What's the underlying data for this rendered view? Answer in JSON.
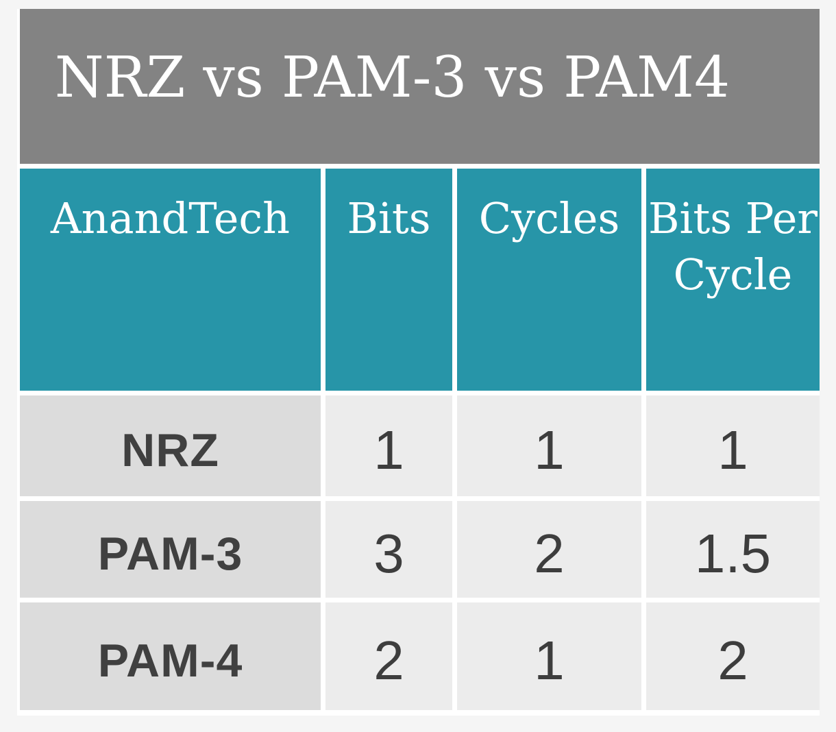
{
  "page": {
    "background": "#f5f5f5",
    "gutter_color": "#ffffff"
  },
  "table": {
    "title": "NRZ vs PAM-3 vs PAM4",
    "title_bg": "#838383",
    "header_bg": "#2795a8",
    "label_cell_bg": "#dcdcdc",
    "value_cell_bg": "#ececec",
    "text_dark": "#3d3d3d",
    "columns": [
      "AnandTech",
      "Bits",
      "Cycles",
      "Bits Per Cycle"
    ],
    "rows": [
      {
        "label": "NRZ",
        "values": [
          "1",
          "1",
          "1"
        ]
      },
      {
        "label": "PAM-3",
        "values": [
          "3",
          "2",
          "1.5"
        ]
      },
      {
        "label": "PAM-4",
        "values": [
          "2",
          "1",
          "2"
        ]
      }
    ]
  },
  "chart_data": {
    "type": "table",
    "title": "NRZ vs PAM-3 vs PAM4",
    "columns": [
      "AnandTech",
      "Bits",
      "Cycles",
      "Bits Per Cycle"
    ],
    "rows": [
      [
        "NRZ",
        1,
        1,
        1
      ],
      [
        "PAM-3",
        3,
        2,
        1.5
      ],
      [
        "PAM-4",
        2,
        1,
        2
      ]
    ],
    "legend_position": "none",
    "grid": false
  }
}
